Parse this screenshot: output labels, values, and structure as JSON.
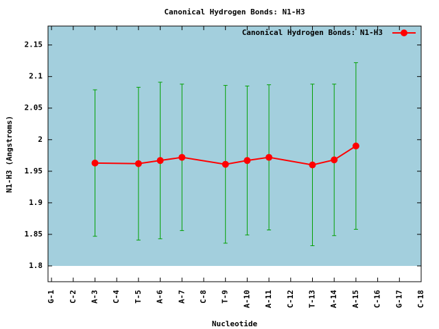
{
  "chart_data": {
    "type": "line",
    "title": "Canonical Hydrogen Bonds: N1-H3",
    "xlabel": "Nucleotide",
    "ylabel": "N1-H3 (Angstroms)",
    "x": [
      3,
      5,
      6,
      7,
      9,
      10,
      11,
      13,
      14,
      15
    ],
    "series": [
      {
        "name": "Canonical Hydrogen Bonds: N1-H3",
        "color": "#ff0000",
        "error_color": "#00a000",
        "values": [
          1.963,
          1.962,
          1.967,
          1.972,
          1.961,
          1.967,
          1.972,
          1.96,
          1.968,
          1.99
        ],
        "errors": [
          0.116,
          0.121,
          0.124,
          0.116,
          0.125,
          0.118,
          0.115,
          0.128,
          0.12,
          0.132
        ]
      }
    ],
    "xlim": [
      0.84,
      18
    ],
    "xticks": [
      {
        "value": 1,
        "label": "G-1"
      },
      {
        "value": 2,
        "label": "C-2"
      },
      {
        "value": 3,
        "label": "A-3"
      },
      {
        "value": 4,
        "label": "C-4"
      },
      {
        "value": 5,
        "label": "T-5"
      },
      {
        "value": 6,
        "label": "A-6"
      },
      {
        "value": 7,
        "label": "A-7"
      },
      {
        "value": 8,
        "label": "C-8"
      },
      {
        "value": 9,
        "label": "T-9"
      },
      {
        "value": 10,
        "label": "A-10"
      },
      {
        "value": 11,
        "label": "A-11"
      },
      {
        "value": 12,
        "label": "C-12"
      },
      {
        "value": 13,
        "label": "T-13"
      },
      {
        "value": 14,
        "label": "A-14"
      },
      {
        "value": 15,
        "label": "A-15"
      },
      {
        "value": 16,
        "label": "C-16"
      },
      {
        "value": 17,
        "label": "G-17"
      },
      {
        "value": 18,
        "label": "C-18"
      }
    ],
    "ylim": [
      1.775,
      2.18
    ],
    "yticks": [
      1.8,
      1.85,
      1.9,
      1.95,
      2,
      2.05,
      2.1,
      2.15
    ],
    "background": "#a3cfdd",
    "legend": "top-right"
  }
}
